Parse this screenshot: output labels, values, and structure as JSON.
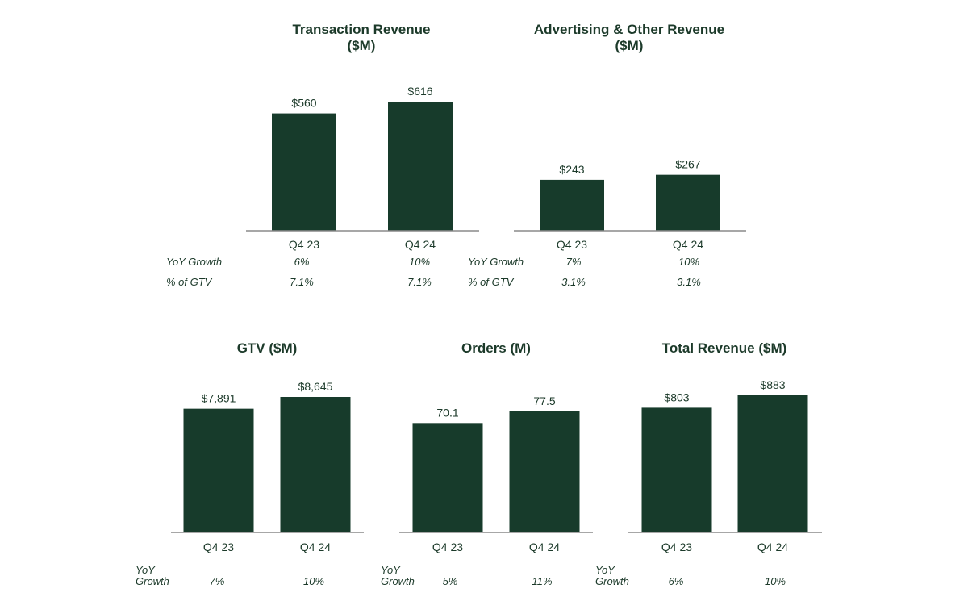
{
  "colors": {
    "bar": "#173b2b",
    "text": "#1c3a2a",
    "axis": "#8a8a8a"
  },
  "chart_data": [
    {
      "type": "bar",
      "title": "Transaction Revenue\n($M)",
      "categories": [
        "Q4 23",
        "Q4 24"
      ],
      "values": [
        560,
        616
      ],
      "value_labels": [
        "$560",
        "$616"
      ],
      "ylim": [
        0,
        620
      ],
      "metrics": [
        {
          "label": "YoY Growth",
          "values": [
            "6%",
            "10%"
          ]
        },
        {
          "label": "% of GTV",
          "values": [
            "7.1%",
            "7.1%"
          ]
        }
      ]
    },
    {
      "type": "bar",
      "title": "Advertising & Other  Revenue\n($M)",
      "categories": [
        "Q4 23",
        "Q4 24"
      ],
      "values": [
        243,
        267
      ],
      "value_labels": [
        "$243",
        "$267"
      ],
      "ylim": [
        0,
        620
      ],
      "metrics": [
        {
          "label": "YoY Growth",
          "values": [
            "7%",
            "10%"
          ]
        },
        {
          "label": "% of GTV",
          "values": [
            "3.1%",
            "3.1%"
          ]
        }
      ]
    },
    {
      "type": "bar",
      "title": "GTV ($M)",
      "categories": [
        "Q4 23",
        "Q4 24"
      ],
      "values": [
        7891,
        8645
      ],
      "value_labels": [
        "$7,891",
        "$8,645"
      ],
      "ylim": [
        0,
        8645
      ],
      "metrics": [
        {
          "label": "YoY\nGrowth",
          "values": [
            "7%",
            "10%"
          ]
        }
      ]
    },
    {
      "type": "bar",
      "title": "Orders (M)",
      "categories": [
        "Q4 23",
        "Q4 24"
      ],
      "values": [
        70.1,
        77.5
      ],
      "value_labels": [
        "70.1",
        "77.5"
      ],
      "ylim": [
        0,
        77.5
      ],
      "metrics": [
        {
          "label": "YoY\nGrowth",
          "values": [
            "5%",
            "11%"
          ]
        }
      ]
    },
    {
      "type": "bar",
      "title": "Total Revenue ($M)",
      "categories": [
        "Q4 23",
        "Q4 24"
      ],
      "values": [
        803,
        883
      ],
      "value_labels": [
        "$803",
        "$883"
      ],
      "ylim": [
        0,
        883
      ],
      "metrics": [
        {
          "label": "YoY\nGrowth",
          "values": [
            "6%",
            "10%"
          ]
        }
      ]
    }
  ]
}
